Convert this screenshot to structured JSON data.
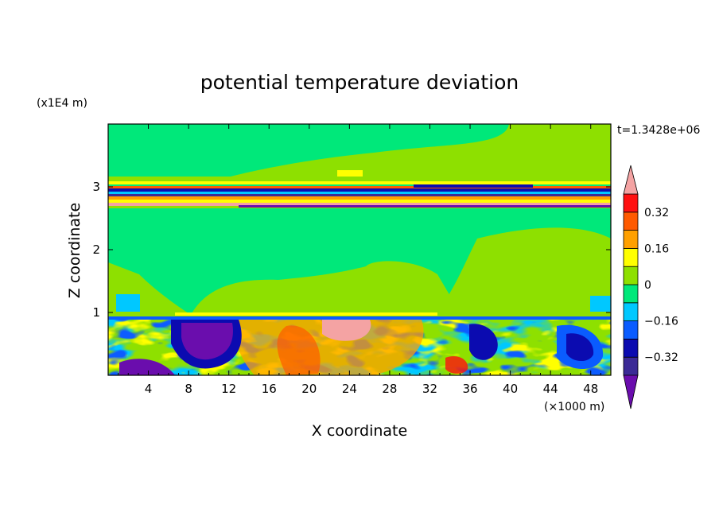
{
  "chart_data": {
    "type": "heatmap",
    "title": "potential temperature deviation",
    "xlabel": "X coordinate",
    "ylabel": "Z coordinate",
    "x_unit": "(×1000 m)",
    "y_unit": "(x1E4 m)",
    "time_label": "t=1.3428e+06",
    "xlim": [
      0,
      50
    ],
    "ylim": [
      0,
      4
    ],
    "x_ticks": [
      "4",
      "8",
      "12",
      "16",
      "20",
      "24",
      "28",
      "32",
      "36",
      "40",
      "44",
      "48"
    ],
    "y_ticks": [
      "1",
      "2",
      "3"
    ],
    "colorbar": {
      "levels": [
        -0.4,
        -0.32,
        -0.24,
        -0.16,
        -0.08,
        0,
        0.08,
        0.16,
        0.24,
        0.32,
        0.4
      ],
      "labels": [
        "0.32",
        "0.16",
        "0",
        "−0.16",
        "−0.32"
      ],
      "colors": [
        "#6a0dad",
        "#3b2a96",
        "#0b0bb0",
        "#0a5cff",
        "#00c8ff",
        "#00e87a",
        "#8ee000",
        "#ffff00",
        "#ffa000",
        "#ff5a00",
        "#ff1010",
        "#f4a3a3"
      ]
    },
    "fields": {
      "upper_stable_layer": {
        "z_range": [
          2.7,
          3.05
        ],
        "pattern": "thin alternating bands of positive and negative deviation"
      },
      "inversion_level_z": 0.93,
      "boundary_layer": {
        "z_range": [
          0,
          0.93
        ],
        "pattern": "turbulent eddies, warm plume near x=24, cold cells near x=10 and x=44"
      }
    }
  }
}
